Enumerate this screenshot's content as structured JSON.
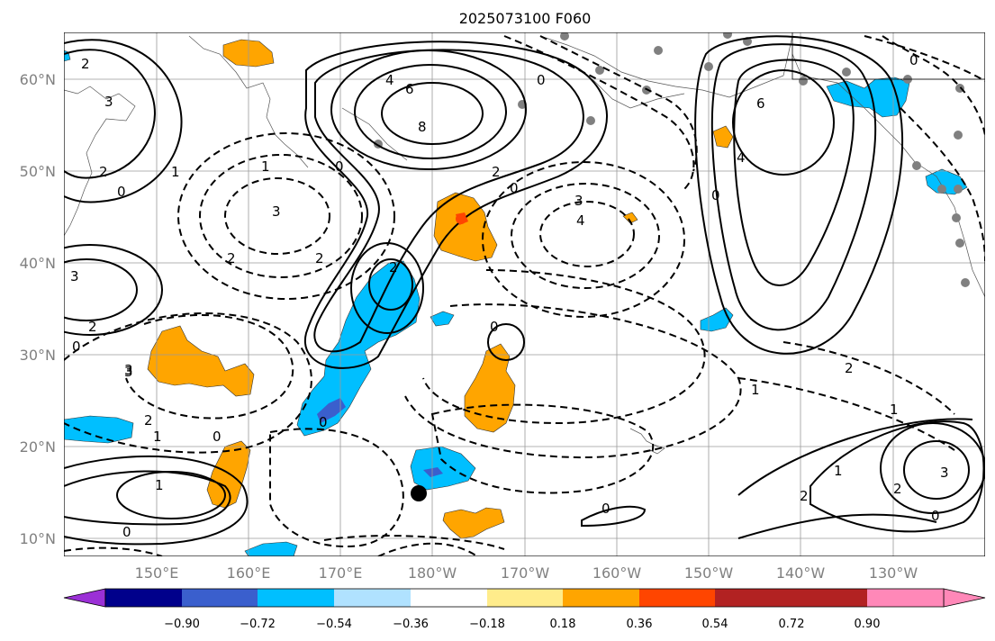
{
  "title": "2025073100 F060",
  "lat_labels": [
    "60°N",
    "50°N",
    "40°N",
    "30°N",
    "20°N",
    "10°N"
  ],
  "lon_labels": [
    "150°E",
    "160°E",
    "170°E",
    "180°W",
    "170°W",
    "160°W",
    "150°W",
    "140°W",
    "130°W"
  ],
  "colorbar": {
    "ticks": [
      "−0.90",
      "−0.72",
      "−0.54",
      "−0.36",
      "−0.18",
      "0.18",
      "0.36",
      "0.54",
      "0.72",
      "0.90"
    ],
    "colors": [
      "#9b30d6",
      "#00008b",
      "#3a5fcd",
      "#00bfff",
      "#b0e2ff",
      "#ffffff",
      "#ffec8b",
      "#ffa500",
      "#ff4500",
      "#b22222",
      "#ff88b8"
    ]
  },
  "contour_labels": [
    "2",
    "3",
    "2",
    "1",
    "0",
    "4",
    "6",
    "8",
    "0",
    "2",
    "0",
    "3",
    "1",
    "0",
    "3",
    "2",
    "2",
    "2",
    "3",
    "4",
    "0",
    "6",
    "4",
    "0",
    "2",
    "3",
    "0",
    "0",
    "1",
    "2",
    "1",
    "1",
    "0",
    "2",
    "3",
    "0",
    "0",
    "1",
    "2",
    "3",
    "0",
    "2",
    "0",
    "1"
  ]
}
